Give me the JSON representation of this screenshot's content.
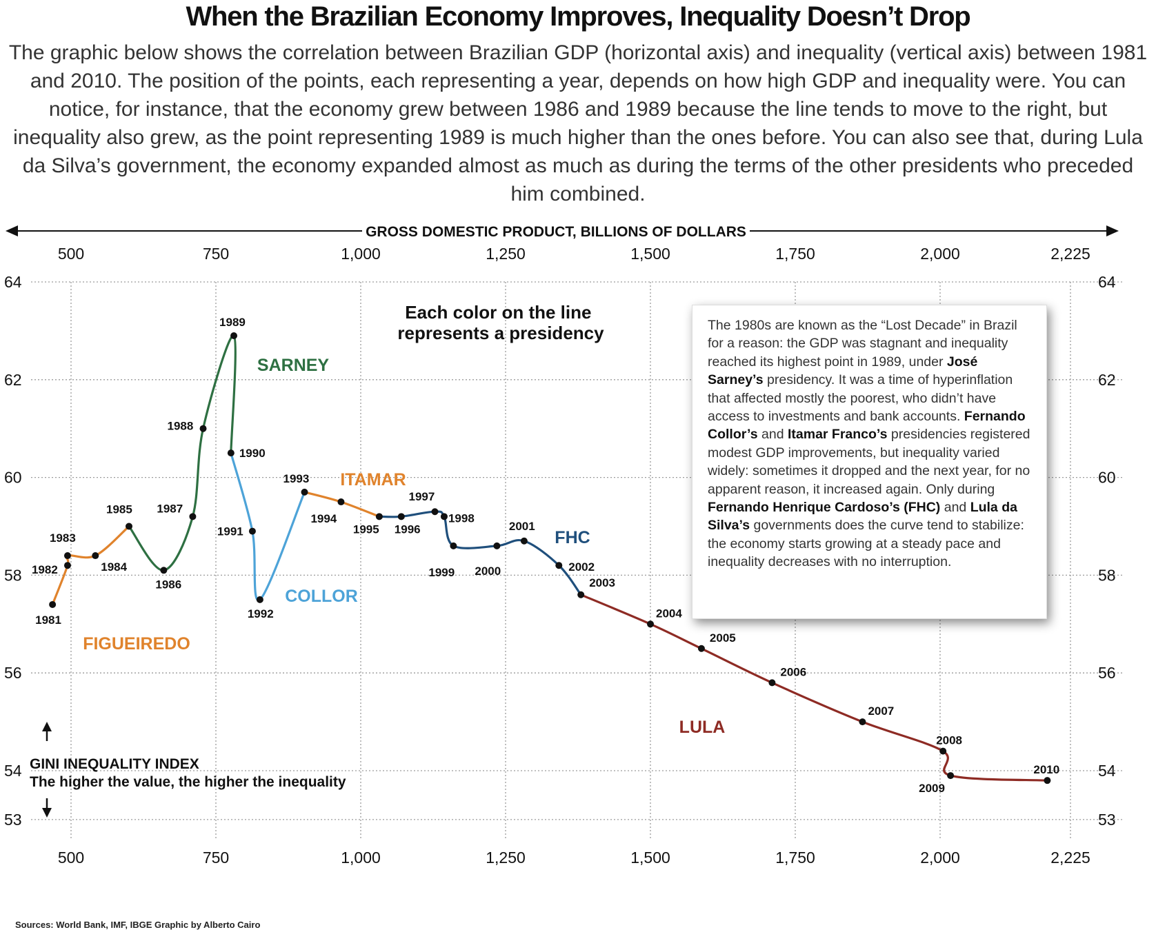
{
  "title": "When the Brazilian Economy Improves, Inequality Doesn’t Drop",
  "subtitle": "The graphic below shows the correlation between Brazilian GDP (horizontal axis) and inequality (vertical axis) between 1981 and 2010. The position of the points, each representing a year, depends on how high GDP and inequality were. You can notice, for instance, that the economy grew between 1986 and 1989 because the line tends to move to the right, but inequality also grew, as the point representing 1989 is much higher than the ones before. You can also see that, during Lula da Silva’s government, the economy expanded almost as much as during the terms of the other presidents who preceded him combined.",
  "sources": "Sources: World Bank, IMF, IBGE   Graphic by Alberto Cairo",
  "callout": {
    "parts": [
      {
        "t": "The 1980s are known as the “Lost Decade” in Brazil for a reason: the GDP was stagnant and inequality reached its highest point in 1989, under ",
        "b": false
      },
      {
        "t": "José Sarney’s",
        "b": true
      },
      {
        "t": " presidency. It was a time of hyperinflation that affected mostly the poorest, who didn’t have access to investments and bank accounts. ",
        "b": false
      },
      {
        "t": "Fernando Collor’s",
        "b": true
      },
      {
        "t": " and ",
        "b": false
      },
      {
        "t": "Itamar Franco’s",
        "b": true
      },
      {
        "t": " presidencies registered modest GDP improvements, but inequality varied widely: sometimes it dropped and the next year, for no apparent reason, it increased again. Only during ",
        "b": false
      },
      {
        "t": "Fernando Henrique Cardoso’s (FHC)",
        "b": true
      },
      {
        "t": " and ",
        "b": false
      },
      {
        "t": "Lula da Silva’s",
        "b": true
      },
      {
        "t": " governments does the curve tend to stabilize: the economy starts growing at a steady pace and inequality decreases with no interruption.",
        "b": false
      }
    ]
  },
  "chart_data": {
    "type": "line",
    "connected_scatter": true,
    "xlabel": "GROSS DOMESTIC PRODUCT, BILLIONS OF DOLLARS",
    "ylabel": "GINI INEQUALITY INDEX",
    "ylabel_note": "The higher the value, the higher the inequality",
    "color_note": "Each color on the line represents a presidency",
    "xlim": [
      450,
      2250
    ],
    "ylim": [
      53,
      64
    ],
    "x_ticks": [
      500,
      750,
      1000,
      1250,
      1500,
      1750,
      2000,
      2225
    ],
    "x_tick_labels": [
      "500",
      "750",
      "1,000",
      "1,250",
      "1,500",
      "1,750",
      "2,000",
      "2,225"
    ],
    "y_ticks": [
      53,
      54,
      56,
      58,
      60,
      62,
      64
    ],
    "y_tick_labels": [
      "53",
      "54",
      "56",
      "58",
      "60",
      "62",
      "64"
    ],
    "grid": true,
    "points": [
      {
        "year": "1981",
        "x": 468,
        "y": 57.4
      },
      {
        "year": "1982",
        "x": 494,
        "y": 58.2
      },
      {
        "year": "1983",
        "x": 494,
        "y": 58.4
      },
      {
        "year": "1984",
        "x": 542,
        "y": 58.4
      },
      {
        "year": "1985",
        "x": 600,
        "y": 59.0
      },
      {
        "year": "1986",
        "x": 660,
        "y": 58.1
      },
      {
        "year": "1987",
        "x": 710,
        "y": 59.2
      },
      {
        "year": "1988",
        "x": 728,
        "y": 61.0
      },
      {
        "year": "1989",
        "x": 781,
        "y": 62.9
      },
      {
        "year": "1990",
        "x": 776,
        "y": 60.5
      },
      {
        "year": "1991",
        "x": 813,
        "y": 58.9
      },
      {
        "year": "1992",
        "x": 826,
        "y": 57.5
      },
      {
        "year": "1993",
        "x": 903,
        "y": 59.7
      },
      {
        "year": "1994",
        "x": 966,
        "y": 59.5
      },
      {
        "year": "1995",
        "x": 1032,
        "y": 59.2
      },
      {
        "year": "1996",
        "x": 1070,
        "y": 59.2
      },
      {
        "year": "1997",
        "x": 1128,
        "y": 59.3
      },
      {
        "year": "1998",
        "x": 1144,
        "y": 59.2
      },
      {
        "year": "1999",
        "x": 1160,
        "y": 58.6
      },
      {
        "year": "2000",
        "x": 1235,
        "y": 58.6
      },
      {
        "year": "2001",
        "x": 1282,
        "y": 58.7
      },
      {
        "year": "2002",
        "x": 1342,
        "y": 58.2
      },
      {
        "year": "2003",
        "x": 1380,
        "y": 57.6
      },
      {
        "year": "2004",
        "x": 1500,
        "y": 57.0
      },
      {
        "year": "2005",
        "x": 1588,
        "y": 56.5
      },
      {
        "year": "2006",
        "x": 1710,
        "y": 55.8
      },
      {
        "year": "2007",
        "x": 1866,
        "y": 55.0
      },
      {
        "year": "2008",
        "x": 2005,
        "y": 54.4
      },
      {
        "year": "2009",
        "x": 2018,
        "y": 53.9
      },
      {
        "year": "2010",
        "x": 2185,
        "y": 53.8
      }
    ],
    "series": [
      {
        "name": "FIGUEIREDO",
        "color": "#e0832c",
        "years": [
          "1981",
          "1982",
          "1983",
          "1984",
          "1985"
        ]
      },
      {
        "name": "SARNEY",
        "color": "#2e7042",
        "years": [
          "1985",
          "1986",
          "1987",
          "1988",
          "1989",
          "1990"
        ]
      },
      {
        "name": "COLLOR",
        "color": "#4da3d8",
        "years": [
          "1990",
          "1991",
          "1992",
          "1993"
        ]
      },
      {
        "name": "ITAMAR",
        "color": "#e0832c",
        "years": [
          "1993",
          "1994",
          "1995"
        ]
      },
      {
        "name": "FHC",
        "color": "#1f4f7c",
        "years": [
          "1995",
          "1996",
          "1997",
          "1998",
          "1999",
          "2000",
          "2001",
          "2002",
          "2003"
        ]
      },
      {
        "name": "LULA",
        "color": "#8e2b24",
        "years": [
          "2003",
          "2004",
          "2005",
          "2006",
          "2007",
          "2008",
          "2009",
          "2010"
        ]
      }
    ]
  }
}
